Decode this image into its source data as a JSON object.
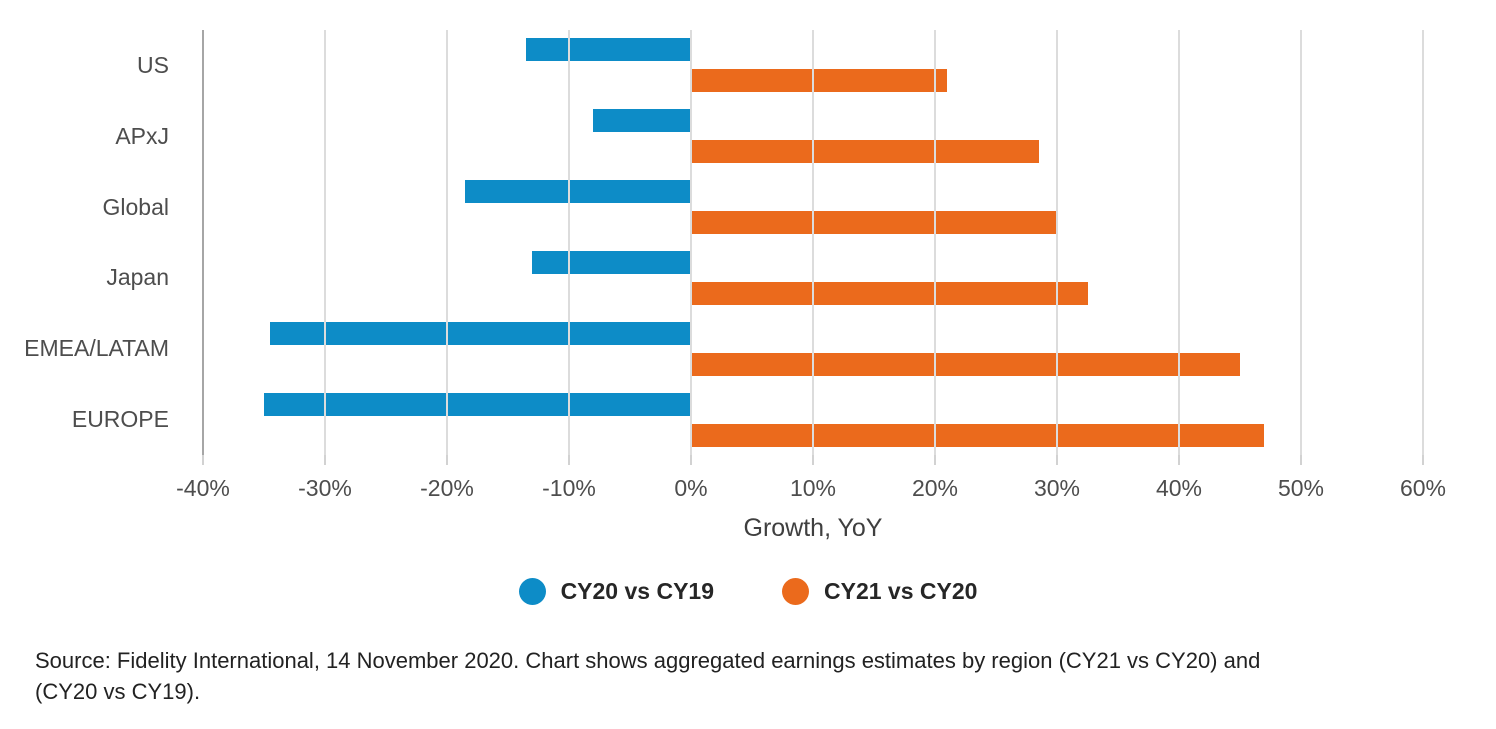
{
  "chart_data": {
    "type": "bar",
    "orientation": "horizontal",
    "categories": [
      "US",
      "APxJ",
      "Global",
      "Japan",
      "EMEA/LATAM",
      "EUROPE"
    ],
    "series": [
      {
        "name": "CY20 vs CY19",
        "color": "#0d8cc7",
        "values": [
          -13.5,
          -8,
          -18.5,
          -13,
          -34.5,
          -35
        ]
      },
      {
        "name": "CY21 vs CY20",
        "color": "#eb6a1c",
        "values": [
          21,
          28.5,
          30,
          32.5,
          45,
          47
        ]
      }
    ],
    "title": "",
    "xlabel": "Growth, YoY",
    "ylabel": "",
    "xlim": [
      -40,
      60
    ],
    "xticks": [
      -40,
      -30,
      -20,
      -10,
      0,
      10,
      20,
      30,
      40,
      50,
      60
    ],
    "tick_format": "percent",
    "grid": "vertical",
    "legend_position": "bottom"
  },
  "footer": {
    "source_line1": "Source: Fidelity International, 14 November 2020. Chart shows aggregated earnings estimates by region (CY21 vs CY20) and",
    "source_line2": "(CY20 vs CY19)."
  },
  "colors": {
    "gridline": "#dcdcdc",
    "axis_line": "#a6a6a6",
    "tick_mark": "#d2d2d2",
    "label_text": "#4d4d4d",
    "legend_text": "#262626"
  }
}
